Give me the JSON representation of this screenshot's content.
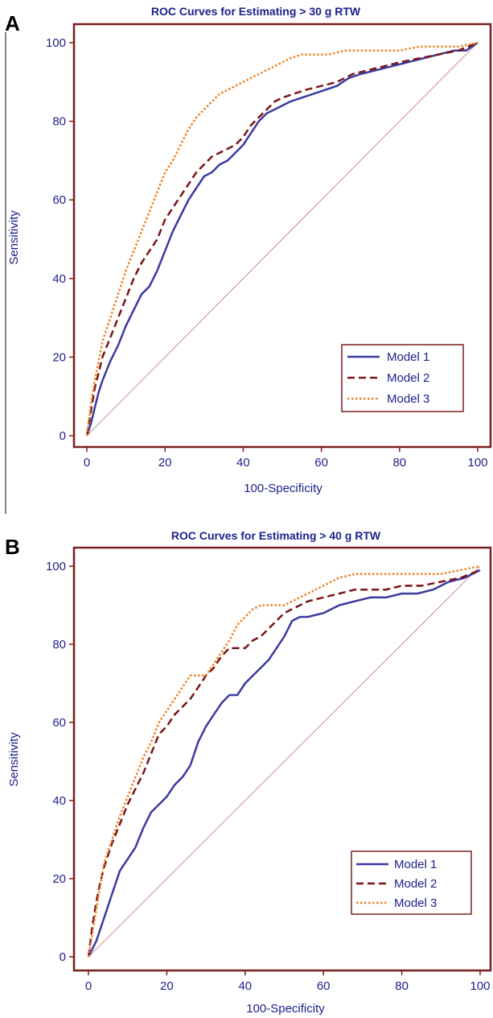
{
  "colors": {
    "frame": "#7a1f1f",
    "text": "#1c1f8a",
    "model1": "#3a3aa0",
    "model2": "#7a1515",
    "model3": "#f08020",
    "diagonal": "#c07070"
  },
  "chart_data": [
    {
      "panel": "A",
      "type": "line",
      "title": "ROC Curves for Estimating > 30 g RTW",
      "xlabel": "100-Specificity",
      "ylabel": "Sensitivity",
      "xlim": [
        0,
        100
      ],
      "ylim": [
        0,
        100
      ],
      "xticks": [
        "0",
        "20",
        "40",
        "60",
        "80",
        "100"
      ],
      "yticks": [
        "0",
        "20",
        "40",
        "60",
        "80",
        "100"
      ],
      "grid": false,
      "legend_position": "bottom-right",
      "reference_line": [
        [
          0,
          0
        ],
        [
          100,
          100
        ]
      ],
      "series": [
        {
          "name": "Model 1",
          "style": "solid",
          "x": [
            0,
            1,
            2,
            3,
            4,
            6,
            8,
            10,
            12,
            14,
            16,
            18,
            20,
            22,
            24,
            26,
            28,
            30,
            32,
            34,
            36,
            38,
            40,
            42,
            44,
            46,
            48,
            50,
            52,
            55,
            58,
            61,
            64,
            67,
            70,
            74,
            78,
            82,
            86,
            90,
            94,
            97,
            100
          ],
          "y": [
            0,
            3,
            7,
            11,
            14,
            19,
            23,
            28,
            32,
            36,
            38,
            42,
            47,
            52,
            56,
            60,
            63,
            66,
            67,
            69,
            70,
            72,
            74,
            77,
            80,
            82,
            83,
            84,
            85,
            86,
            87,
            88,
            89,
            91,
            92,
            93,
            94,
            95,
            96,
            97,
            98,
            98,
            100
          ]
        },
        {
          "name": "Model 2",
          "style": "dashed",
          "x": [
            0,
            1,
            2,
            3,
            4,
            6,
            8,
            10,
            12,
            14,
            16,
            18,
            20,
            22,
            24,
            26,
            28,
            30,
            32,
            34,
            36,
            38,
            40,
            42,
            44,
            46,
            48,
            50,
            53,
            56,
            60,
            64,
            68,
            72,
            76,
            80,
            85,
            90,
            95,
            100
          ],
          "y": [
            0,
            6,
            12,
            16,
            20,
            25,
            30,
            35,
            40,
            44,
            47,
            50,
            55,
            58,
            61,
            64,
            67,
            69,
            71,
            72,
            73,
            74,
            76,
            79,
            81,
            83,
            85,
            86,
            87,
            88,
            89,
            90,
            92,
            93,
            94,
            95,
            96,
            97,
            98,
            100
          ]
        },
        {
          "name": "Model 3",
          "style": "dotted",
          "x": [
            0,
            1,
            2,
            3,
            4,
            6,
            8,
            10,
            12,
            14,
            16,
            18,
            20,
            22,
            24,
            26,
            28,
            30,
            32,
            34,
            36,
            38,
            40,
            42,
            44,
            46,
            48,
            50,
            52,
            55,
            58,
            62,
            66,
            70,
            75,
            80,
            85,
            90,
            95,
            100
          ],
          "y": [
            0,
            8,
            14,
            19,
            24,
            30,
            36,
            42,
            47,
            52,
            57,
            62,
            67,
            70,
            74,
            78,
            81,
            83,
            85,
            87,
            88,
            89,
            90,
            91,
            92,
            93,
            94,
            95,
            96,
            97,
            97,
            97,
            98,
            98,
            98,
            98,
            99,
            99,
            99,
            100
          ]
        }
      ]
    },
    {
      "panel": "B",
      "type": "line",
      "title": "ROC Curves for Estimating > 40 g RTW",
      "xlabel": "100-Specificity",
      "ylabel": "Sensitivity",
      "xlim": [
        0,
        100
      ],
      "ylim": [
        0,
        100
      ],
      "xticks": [
        "0",
        "20",
        "40",
        "60",
        "80",
        "100"
      ],
      "yticks": [
        "0",
        "20",
        "40",
        "60",
        "80",
        "100"
      ],
      "grid": false,
      "legend_position": "bottom-right",
      "reference_line": [
        [
          0,
          0
        ],
        [
          100,
          100
        ]
      ],
      "series": [
        {
          "name": "Model 1",
          "style": "solid",
          "x": [
            0,
            2,
            4,
            6,
            8,
            10,
            12,
            14,
            16,
            18,
            20,
            22,
            24,
            26,
            28,
            30,
            32,
            34,
            36,
            38,
            40,
            42,
            44,
            46,
            48,
            50,
            52,
            54,
            56,
            60,
            64,
            68,
            72,
            76,
            80,
            84,
            88,
            92,
            96,
            100
          ],
          "y": [
            0,
            4,
            10,
            16,
            22,
            25,
            28,
            33,
            37,
            39,
            41,
            44,
            46,
            49,
            55,
            59,
            62,
            65,
            67,
            67,
            70,
            72,
            74,
            76,
            79,
            82,
            86,
            87,
            87,
            88,
            90,
            91,
            92,
            92,
            93,
            93,
            94,
            96,
            97,
            99
          ]
        },
        {
          "name": "Model 2",
          "style": "dashed",
          "x": [
            0,
            1,
            2,
            3,
            4,
            6,
            8,
            10,
            12,
            14,
            16,
            18,
            20,
            22,
            24,
            26,
            28,
            30,
            32,
            34,
            36,
            38,
            40,
            42,
            44,
            46,
            48,
            50,
            52,
            54,
            56,
            60,
            64,
            68,
            72,
            76,
            80,
            85,
            90,
            95,
            100
          ],
          "y": [
            0,
            8,
            14,
            19,
            23,
            29,
            34,
            39,
            43,
            47,
            52,
            57,
            59,
            62,
            64,
            66,
            69,
            72,
            74,
            77,
            79,
            79,
            79,
            81,
            82,
            84,
            86,
            88,
            89,
            90,
            91,
            92,
            93,
            94,
            94,
            94,
            95,
            95,
            96,
            97,
            99
          ]
        },
        {
          "name": "Model 3",
          "style": "dotted",
          "x": [
            0,
            1,
            2,
            3,
            4,
            6,
            8,
            10,
            12,
            14,
            16,
            18,
            20,
            22,
            24,
            26,
            28,
            30,
            32,
            34,
            36,
            38,
            40,
            42,
            44,
            46,
            48,
            50,
            52,
            54,
            56,
            60,
            64,
            68,
            72,
            76,
            80,
            85,
            90,
            95,
            100
          ],
          "y": [
            0,
            6,
            12,
            18,
            24,
            30,
            36,
            41,
            46,
            51,
            55,
            60,
            63,
            66,
            69,
            72,
            72,
            72,
            75,
            78,
            81,
            85,
            87,
            89,
            90,
            90,
            90,
            90,
            91,
            92,
            93,
            95,
            97,
            98,
            98,
            98,
            98,
            98,
            98,
            99,
            100
          ]
        }
      ]
    }
  ]
}
